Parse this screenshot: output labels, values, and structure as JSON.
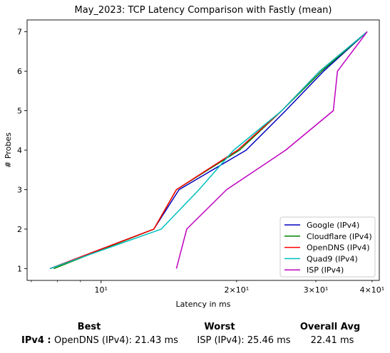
{
  "chart_data": {
    "type": "line",
    "title": "May_2023: TCP Latency Comparison with Fastly (mean)",
    "xlabel": "Latency in ms",
    "ylabel": "# Probes",
    "xscale": "log",
    "xlim": [
      6.85,
      41.5
    ],
    "ylim": [
      0.7,
      7.3
    ],
    "x_ticks": [
      {
        "value": 10,
        "label": "10¹"
      },
      {
        "value": 20,
        "label": "2×10¹"
      },
      {
        "value": 30,
        "label": "3×10¹"
      },
      {
        "value": 40,
        "label": "4×10¹"
      }
    ],
    "y_ticks": [
      1,
      2,
      3,
      4,
      5,
      6,
      7
    ],
    "legend_position": "bottom-right",
    "grid": false,
    "series": [
      {
        "name": "Google (IPv4)",
        "color": "#0000bf",
        "points": [
          [
            7.7,
            1
          ],
          [
            13.1,
            2
          ],
          [
            14.9,
            3
          ],
          [
            21.0,
            4
          ],
          [
            25.7,
            5
          ],
          [
            31.2,
            6
          ],
          [
            39.0,
            7
          ]
        ]
      },
      {
        "name": "Cloudflare (IPv4)",
        "color": "#008000",
        "points": [
          [
            7.85,
            1
          ],
          [
            13.1,
            2
          ],
          [
            14.7,
            3
          ],
          [
            20.3,
            4
          ],
          [
            25.2,
            5
          ],
          [
            30.9,
            6
          ],
          [
            39.0,
            7
          ]
        ]
      },
      {
        "name": "OpenDNS (IPv4)",
        "color": "#ff0000",
        "points": [
          [
            7.7,
            1
          ],
          [
            13.1,
            2
          ],
          [
            14.7,
            3
          ],
          [
            20.1,
            4
          ],
          [
            25.2,
            5
          ],
          [
            30.6,
            6
          ],
          [
            39.0,
            7
          ]
        ]
      },
      {
        "name": "Quad9 (IPv4)",
        "color": "#00bfbf",
        "points": [
          [
            7.7,
            1
          ],
          [
            13.6,
            2
          ],
          [
            16.5,
            3
          ],
          [
            19.7,
            4
          ],
          [
            25.2,
            5
          ],
          [
            30.6,
            6
          ],
          [
            39.0,
            7
          ]
        ]
      },
      {
        "name": "ISP (IPv4)",
        "color": "#bf00bf",
        "points": [
          [
            14.7,
            1
          ],
          [
            15.5,
            2
          ],
          [
            19.0,
            3
          ],
          [
            25.7,
            4
          ],
          [
            32.8,
            5
          ],
          [
            33.5,
            6
          ],
          [
            39.0,
            7
          ]
        ]
      }
    ]
  },
  "summary": {
    "headers": {
      "best": "Best",
      "worst": "Worst",
      "overall": "Overall Avg"
    },
    "row_label": "IPv4 :",
    "best": "OpenDNS (IPv4): 21.43 ms",
    "worst": "ISP (IPv4): 25.46 ms",
    "overall": "22.41 ms"
  }
}
